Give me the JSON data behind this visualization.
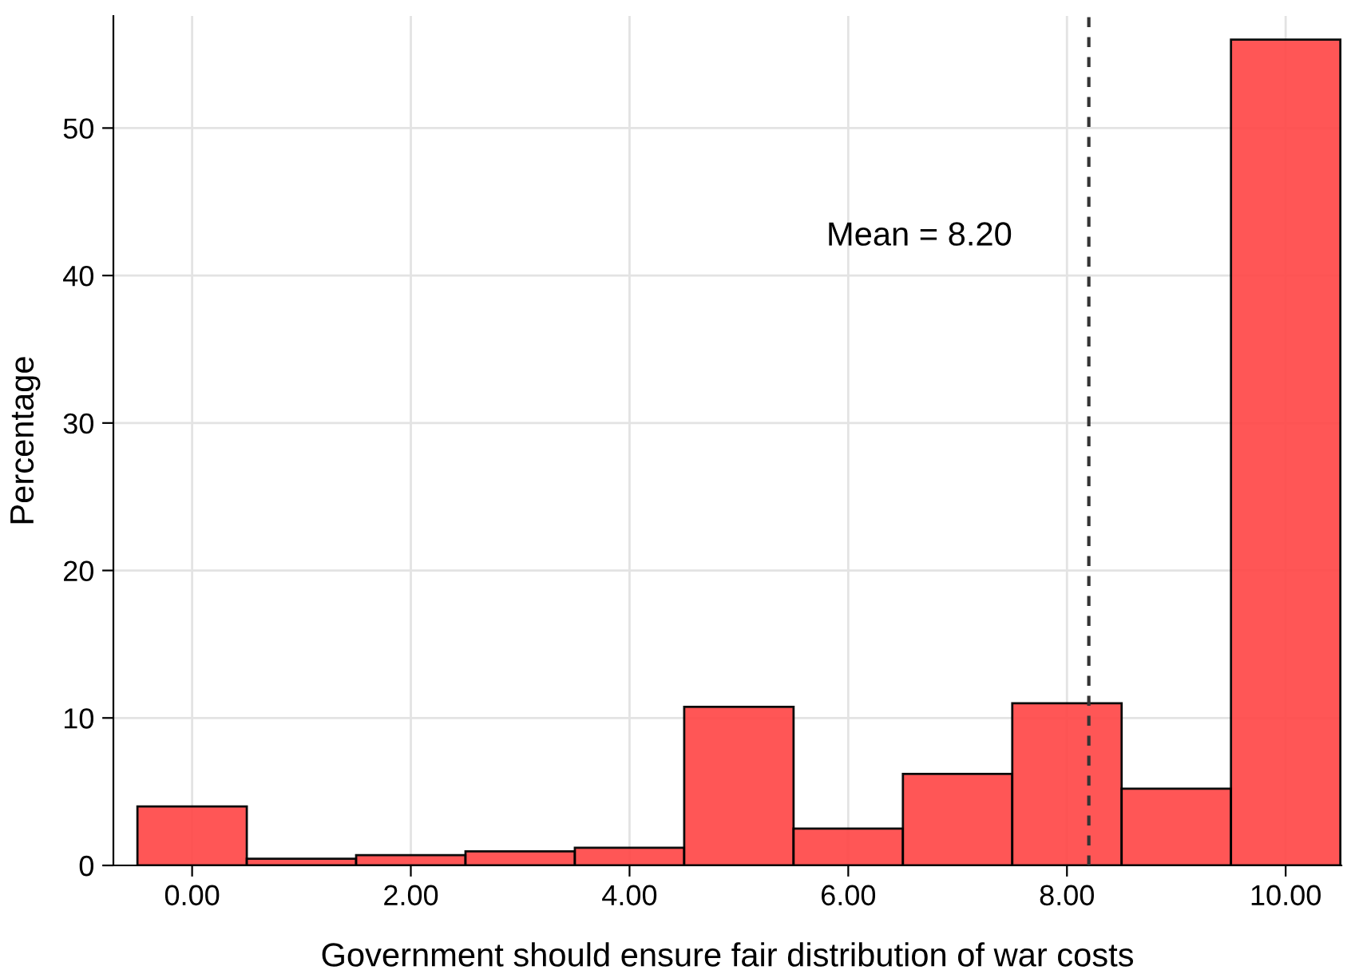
{
  "chart_data": {
    "type": "histogram",
    "xlabel": "Government should ensure fair distribution of war costs",
    "ylabel": "Percentage",
    "bins": [
      -0.5,
      0.5,
      1.5,
      2.5,
      3.5,
      4.5,
      5.5,
      6.5,
      7.5,
      8.5,
      9.5,
      10.5
    ],
    "values": [
      4.0,
      0.45,
      0.7,
      0.95,
      1.2,
      10.75,
      2.5,
      6.2,
      11.0,
      5.2,
      56.0
    ],
    "color": "#ff4d4d",
    "xlim": [
      -0.72,
      10.51
    ],
    "ylim": [
      0,
      57.6
    ],
    "xticks": [
      {
        "value": 0,
        "label": "0.00"
      },
      {
        "value": 2,
        "label": "2.00"
      },
      {
        "value": 4,
        "label": "4.00"
      },
      {
        "value": 6,
        "label": "6.00"
      },
      {
        "value": 8,
        "label": "8.00"
      },
      {
        "value": 10,
        "label": "10.00"
      }
    ],
    "yticks": [
      0,
      10,
      20,
      30,
      40,
      50
    ],
    "grid": true,
    "ref_lines": [
      {
        "axis": "x",
        "value": 8.2,
        "label": "Mean = 8.20",
        "color": "#333333",
        "line_style": "dashed"
      }
    ]
  }
}
